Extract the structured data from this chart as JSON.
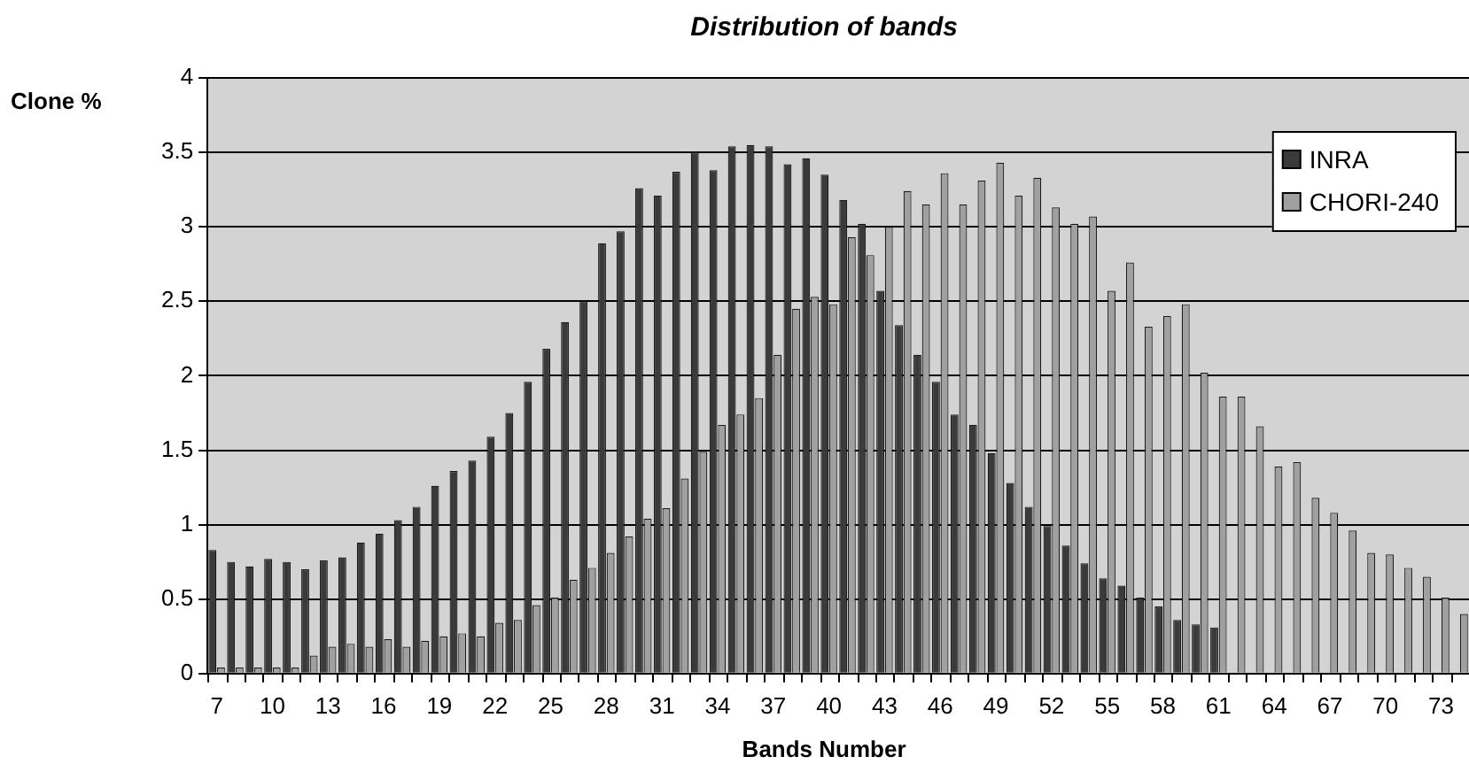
{
  "chart_data": {
    "type": "bar",
    "title": "Distribution of bands",
    "xlabel": "Bands Number",
    "ylabel": "Clone %",
    "categories": [
      "7",
      null,
      null,
      "10",
      null,
      null,
      "13",
      null,
      null,
      "16",
      null,
      null,
      "19",
      null,
      null,
      "22",
      null,
      null,
      "25",
      null,
      null,
      "28",
      null,
      null,
      "31",
      null,
      null,
      "34",
      null,
      null,
      "37",
      null,
      null,
      "40",
      null,
      null,
      "43",
      null,
      null,
      "46",
      null,
      null,
      "49",
      null,
      null,
      "52",
      null,
      null,
      "55",
      null,
      null,
      "58",
      null,
      null,
      "61",
      null,
      null,
      "64",
      null,
      null,
      "67",
      null,
      null,
      "70",
      null,
      null,
      "73",
      null
    ],
    "series": [
      {
        "name": "INRA",
        "color": "#3a3a3a",
        "values": [
          0.83,
          0.75,
          0.72,
          0.77,
          0.75,
          0.7,
          0.76,
          0.78,
          0.88,
          0.94,
          1.03,
          1.12,
          1.26,
          1.36,
          1.43,
          1.59,
          1.75,
          1.96,
          2.18,
          2.36,
          2.5,
          2.89,
          2.97,
          3.26,
          3.21,
          3.37,
          3.5,
          3.38,
          3.54,
          3.55,
          3.54,
          3.42,
          3.46,
          3.35,
          3.18,
          3.02,
          2.57,
          2.34,
          2.14,
          1.96,
          1.74,
          1.67,
          1.48,
          1.28,
          1.12,
          0.99,
          0.86,
          0.74,
          0.64,
          0.59,
          0.51,
          0.45,
          0.36,
          0.33,
          0.31,
          0,
          0,
          0,
          0,
          0,
          0,
          0,
          0,
          0,
          0,
          0,
          0,
          0
        ]
      },
      {
        "name": "CHORI-240",
        "color": "#a0a0a0",
        "values": [
          0.04,
          0.04,
          0.04,
          0.04,
          0.04,
          0.12,
          0.18,
          0.2,
          0.18,
          0.23,
          0.18,
          0.22,
          0.25,
          0.27,
          0.25,
          0.34,
          0.36,
          0.46,
          0.51,
          0.63,
          0.71,
          0.81,
          0.92,
          1.04,
          1.11,
          1.31,
          1.49,
          1.67,
          1.74,
          1.85,
          2.14,
          2.45,
          2.53,
          2.48,
          2.93,
          2.81,
          3.0,
          3.24,
          3.15,
          3.36,
          3.15,
          3.31,
          3.43,
          3.21,
          3.33,
          3.13,
          3.02,
          3.07,
          2.57,
          2.76,
          2.33,
          2.4,
          2.48,
          2.02,
          1.86,
          1.86,
          1.66,
          1.39,
          1.42,
          1.18,
          1.08,
          0.96,
          0.81,
          0.8,
          0.71,
          0.65,
          0.51,
          0.4
        ]
      }
    ],
    "ylim": [
      0,
      4
    ],
    "yticks": [
      0,
      0.5,
      1,
      1.5,
      2,
      2.5,
      3,
      3.5,
      4
    ],
    "grid": "y",
    "legend": "top right"
  }
}
